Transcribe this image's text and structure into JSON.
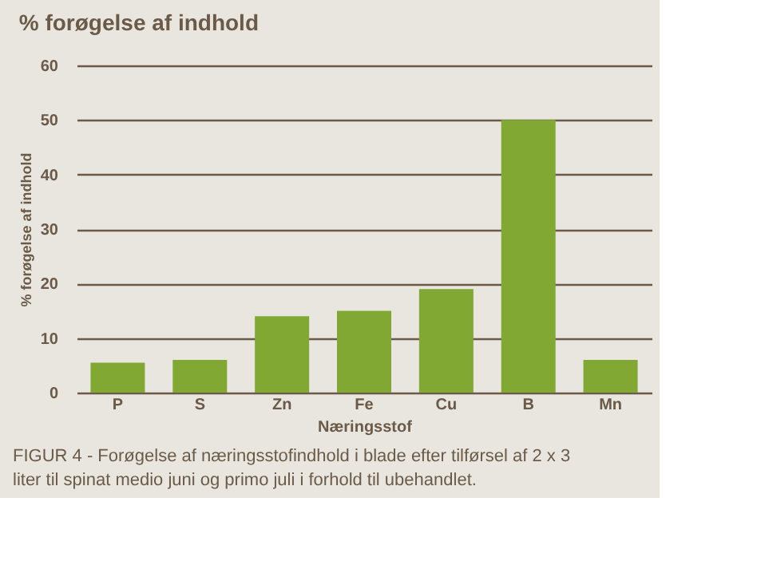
{
  "chart_data": {
    "type": "bar",
    "title": "% forøgelse af indhold",
    "xlabel": "Næringsstof",
    "ylabel": "% forøgelse af indhold",
    "categories": [
      "P",
      "S",
      "Zn",
      "Fe",
      "Cu",
      "B",
      "Mn"
    ],
    "values": [
      5.5,
      6,
      14,
      15,
      19,
      50,
      6
    ],
    "color": "#80a832",
    "ylim": [
      0,
      60
    ],
    "yticks": [
      0,
      10,
      20,
      30,
      40,
      50,
      60
    ],
    "grid": "y",
    "annotations": [
      "FIGUR 4 - Forøgelse af næringsstofindhold i blade efter tilførsel af 2 x 3 liter til spinat medio juni og primo juli i forhold til ubehandlet."
    ]
  }
}
